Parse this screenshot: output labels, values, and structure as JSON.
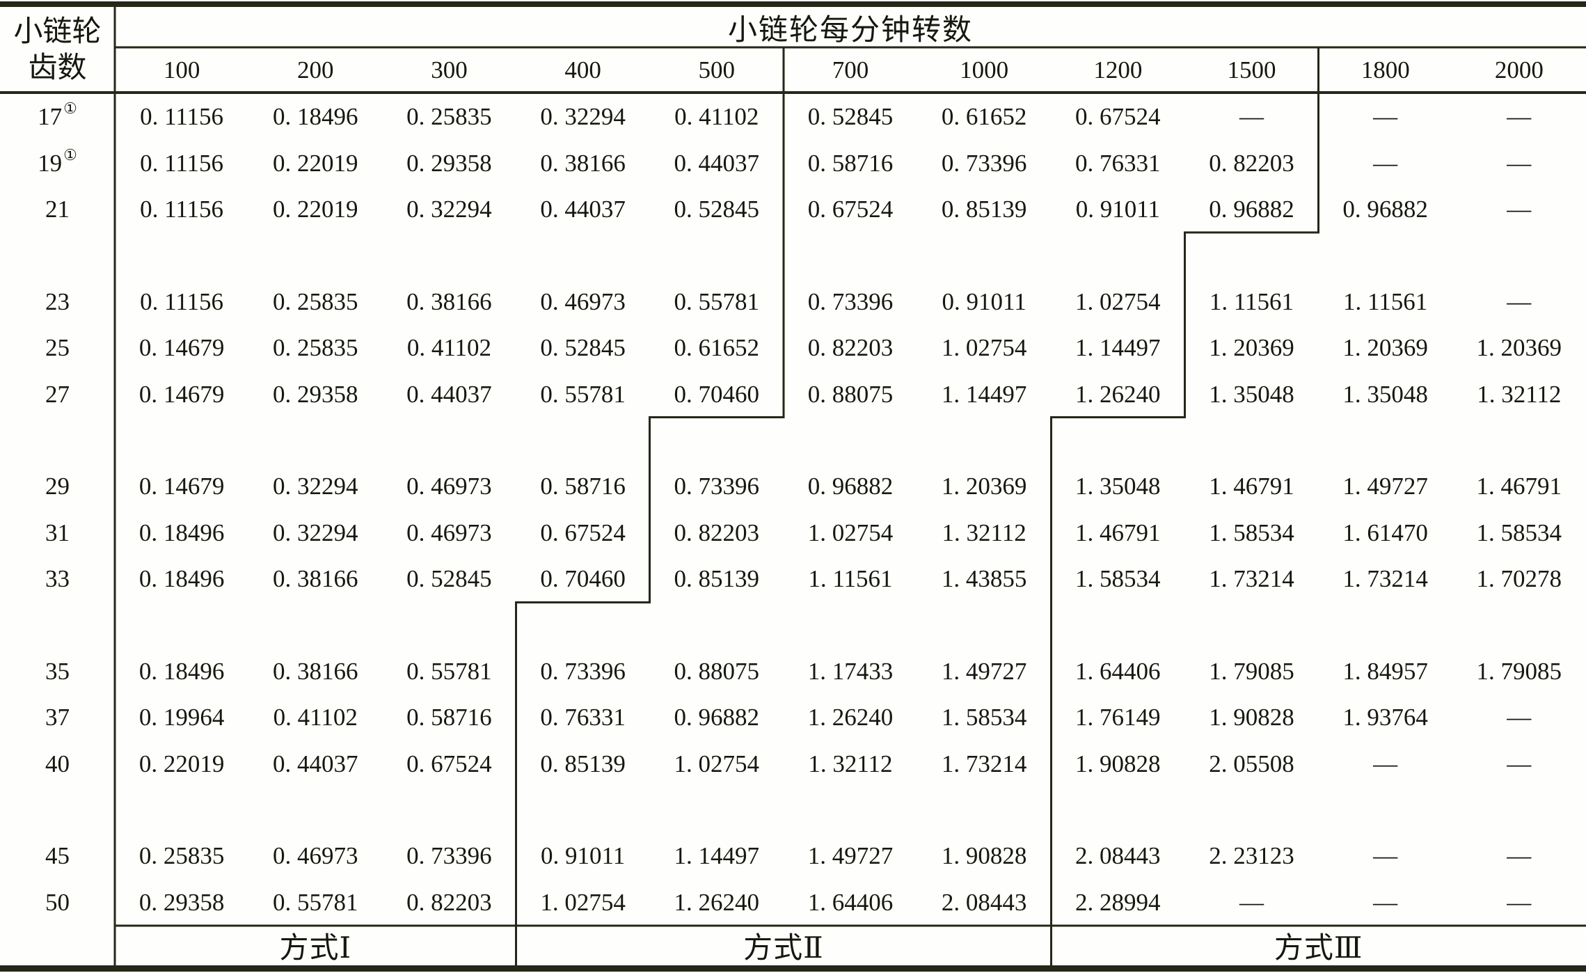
{
  "page": {
    "paper_color": "#fefefc",
    "ink_color": "#17170f",
    "line_color": "#262619"
  },
  "table": {
    "corner_header": {
      "line1": "小链轮",
      "line2": "齿数"
    },
    "group_header": "小链轮每分钟转数",
    "columns": [
      "100",
      "200",
      "300",
      "400",
      "500",
      "700",
      "1000",
      "1200",
      "1500",
      "1800",
      "2000"
    ],
    "dash": "—",
    "row_groups": [
      {
        "rows": [
          {
            "teeth": "17",
            "sup": "①",
            "values": [
              "0. 11156",
              "0. 18496",
              "0. 25835",
              "0. 32294",
              "0. 41102",
              "0. 52845",
              "0. 61652",
              "0. 67524",
              "—",
              "—",
              "—"
            ]
          },
          {
            "teeth": "19",
            "sup": "①",
            "values": [
              "0. 11156",
              "0. 22019",
              "0. 29358",
              "0. 38166",
              "0. 44037",
              "0. 58716",
              "0. 73396",
              "0. 76331",
              "0. 82203",
              "—",
              "—"
            ]
          },
          {
            "teeth": "21",
            "sup": "",
            "values": [
              "0. 11156",
              "0. 22019",
              "0. 32294",
              "0. 44037",
              "0. 52845",
              "0. 67524",
              "0. 85139",
              "0. 91011",
              "0. 96882",
              "0. 96882",
              "—"
            ]
          }
        ]
      },
      {
        "rows": [
          {
            "teeth": "23",
            "sup": "",
            "values": [
              "0. 11156",
              "0. 25835",
              "0. 38166",
              "0. 46973",
              "0. 55781",
              "0. 73396",
              "0. 91011",
              "1. 02754",
              "1. 11561",
              "1. 11561",
              "—"
            ]
          },
          {
            "teeth": "25",
            "sup": "",
            "values": [
              "0. 14679",
              "0. 25835",
              "0. 41102",
              "0. 52845",
              "0. 61652",
              "0. 82203",
              "1. 02754",
              "1. 14497",
              "1. 20369",
              "1. 20369",
              "1. 20369"
            ]
          },
          {
            "teeth": "27",
            "sup": "",
            "values": [
              "0. 14679",
              "0. 29358",
              "0. 44037",
              "0. 55781",
              "0. 70460",
              "0. 88075",
              "1. 14497",
              "1. 26240",
              "1. 35048",
              "1. 35048",
              "1. 32112"
            ]
          }
        ]
      },
      {
        "rows": [
          {
            "teeth": "29",
            "sup": "",
            "values": [
              "0. 14679",
              "0. 32294",
              "0. 46973",
              "0. 58716",
              "0. 73396",
              "0. 96882",
              "1. 20369",
              "1. 35048",
              "1. 46791",
              "1. 49727",
              "1. 46791"
            ]
          },
          {
            "teeth": "31",
            "sup": "",
            "values": [
              "0. 18496",
              "0. 32294",
              "0. 46973",
              "0. 67524",
              "0. 82203",
              "1. 02754",
              "1. 32112",
              "1. 46791",
              "1. 58534",
              "1. 61470",
              "1. 58534"
            ]
          },
          {
            "teeth": "33",
            "sup": "",
            "values": [
              "0. 18496",
              "0. 38166",
              "0. 52845",
              "0. 70460",
              "0. 85139",
              "1. 11561",
              "1. 43855",
              "1. 58534",
              "1. 73214",
              "1. 73214",
              "1. 70278"
            ]
          }
        ]
      },
      {
        "rows": [
          {
            "teeth": "35",
            "sup": "",
            "values": [
              "0. 18496",
              "0. 38166",
              "0. 55781",
              "0. 73396",
              "0. 88075",
              "1. 17433",
              "1. 49727",
              "1. 64406",
              "1. 79085",
              "1. 84957",
              "1. 79085"
            ]
          },
          {
            "teeth": "37",
            "sup": "",
            "values": [
              "0. 19964",
              "0. 41102",
              "0. 58716",
              "0. 76331",
              "0. 96882",
              "1. 26240",
              "1. 58534",
              "1. 76149",
              "1. 90828",
              "1. 93764",
              "—"
            ]
          },
          {
            "teeth": "40",
            "sup": "",
            "values": [
              "0. 22019",
              "0. 44037",
              "0. 67524",
              "0. 85139",
              "1. 02754",
              "1. 32112",
              "1. 73214",
              "1. 90828",
              "2. 05508",
              "—",
              "—"
            ]
          }
        ]
      },
      {
        "rows": [
          {
            "teeth": "45",
            "sup": "",
            "values": [
              "0. 25835",
              "0. 46973",
              "0. 73396",
              "0. 91011",
              "1. 14497",
              "1. 49727",
              "1. 90828",
              "2. 08443",
              "2. 23123",
              "—",
              "—"
            ]
          },
          {
            "teeth": "50",
            "sup": "",
            "values": [
              "0. 29358",
              "0. 55781",
              "0. 82203",
              "1. 02754",
              "1. 26240",
              "1. 64406",
              "2. 08443",
              "2. 28994",
              "—",
              "—",
              "—"
            ]
          }
        ]
      }
    ],
    "footer_labels": [
      {
        "text": "方式Ⅰ",
        "from_col": 0,
        "to_col": 3
      },
      {
        "text": "方式Ⅱ",
        "from_col": 3,
        "to_col": 7
      },
      {
        "text": "方式Ⅲ",
        "from_col": 7,
        "to_col": 11
      }
    ],
    "mode_boundary_steps": {
      "mode1_mode2": [
        [
          5,
          -1,
          7
        ],
        [
          4,
          7,
          11
        ],
        [
          3,
          11,
          19
        ]
      ],
      "mode2_mode3": [
        [
          9,
          -1,
          3
        ],
        [
          8,
          3,
          7
        ],
        [
          7,
          7,
          19
        ]
      ]
    }
  }
}
